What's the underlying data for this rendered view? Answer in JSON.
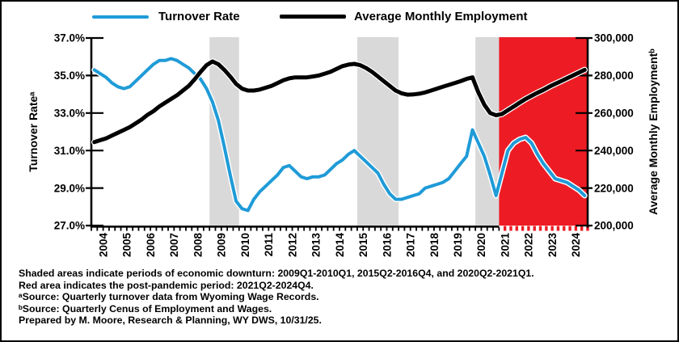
{
  "legend": {
    "items": [
      {
        "label": "Turnover Rate",
        "color": "#1F9BD7"
      },
      {
        "label": "Average Monthly Employment",
        "color": "#000000"
      }
    ]
  },
  "axes": {
    "left": {
      "title": "Turnover Rateᵃ",
      "tick_labels": [
        "37.0%",
        "35.0%",
        "33.0%",
        "31.0%",
        "29.0%",
        "27.0%"
      ]
    },
    "right": {
      "title": "Average Monthly Employmentᵇ",
      "tick_labels": [
        "300,000",
        "280,000",
        "260,000",
        "240,000",
        "220,000",
        "200,000"
      ]
    },
    "x": {
      "years": [
        "2004",
        "2005",
        "2006",
        "2007",
        "2008",
        "2009",
        "2010",
        "2011",
        "2012",
        "2013",
        "2014",
        "2015",
        "2016",
        "2017",
        "2018",
        "2019",
        "2020",
        "2021",
        "2022",
        "2023",
        "2024"
      ]
    }
  },
  "footnotes": [
    "Shaded areas indicate periods of economic downturn: 2009Q1-2010Q1, 2015Q2-2016Q4, and 2020Q2-2021Q1.",
    "Red area indicates the post-pandemic period: 2021Q2-2024Q4.",
    "ᵃSource: Quarterly turnover data from Wyoming Wage Records.",
    "ᵇSource: Quarterly Cenus of Employment and Wages.",
    "Prepared by M. Moore, Research & Planning, WY DWS, 10/31/25."
  ],
  "colors": {
    "turnover_line": "#1F9BD7",
    "employment_line": "#000000",
    "line_halo": "#FFFFFF",
    "downturn_band": "#D9D9D9",
    "post_pandemic_band": "#ED1C24",
    "axis": "#000000"
  },
  "chart_data": {
    "type": "line",
    "frequency": "quarterly",
    "start": "2004Q1",
    "end": "2024Q4",
    "left_axis": {
      "label": "Turnover Rateᵃ",
      "range": [
        27,
        37
      ],
      "tick_step": 2,
      "unit": "percent"
    },
    "right_axis": {
      "label": "Average Monthly Employmentᵇ",
      "range": [
        200000,
        300000
      ],
      "tick_step": 20000,
      "unit": "jobs"
    },
    "grid": false,
    "legend_position": "top",
    "series": [
      {
        "name": "Turnover Rate",
        "axis": "left",
        "color": "#1F9BD7",
        "unit": "%",
        "values": [
          35.3,
          35.1,
          34.9,
          34.6,
          34.4,
          34.3,
          34.4,
          34.7,
          35.0,
          35.3,
          35.6,
          35.8,
          35.8,
          35.9,
          35.8,
          35.6,
          35.4,
          35.1,
          34.8,
          34.3,
          33.6,
          32.6,
          31.2,
          29.7,
          28.3,
          27.9,
          27.8,
          28.4,
          28.8,
          29.1,
          29.4,
          29.7,
          30.1,
          30.2,
          29.9,
          29.6,
          29.5,
          29.6,
          29.6,
          29.7,
          30.0,
          30.3,
          30.5,
          30.8,
          31.0,
          30.7,
          30.4,
          30.1,
          29.8,
          29.2,
          28.7,
          28.4,
          28.4,
          28.5,
          28.6,
          28.7,
          29.0,
          29.1,
          29.2,
          29.3,
          29.5,
          29.9,
          30.3,
          30.7,
          32.1,
          31.4,
          30.7,
          29.7,
          28.6,
          29.8,
          31.0,
          31.4,
          31.6,
          31.7,
          31.4,
          30.8,
          30.3,
          29.9,
          29.5,
          29.4,
          29.3,
          29.1,
          28.9,
          28.6
        ]
      },
      {
        "name": "Average Monthly Employment",
        "axis": "right",
        "color": "#000000",
        "unit": "jobs",
        "values": [
          244500,
          245500,
          246500,
          248000,
          249500,
          251000,
          252500,
          254500,
          256500,
          259000,
          261000,
          263500,
          265500,
          267500,
          269500,
          272000,
          274500,
          278000,
          282000,
          285500,
          287500,
          286000,
          283000,
          279500,
          275500,
          273000,
          272000,
          272000,
          272500,
          273500,
          274500,
          276000,
          277500,
          278500,
          279000,
          279000,
          279000,
          279500,
          280000,
          281000,
          282000,
          283500,
          285000,
          285800,
          286200,
          285500,
          284000,
          282000,
          279500,
          277000,
          274500,
          272000,
          270500,
          269800,
          269900,
          270300,
          271000,
          272000,
          273000,
          274000,
          275000,
          276000,
          277000,
          278200,
          279000,
          271000,
          264500,
          260000,
          258800,
          259500,
          261500,
          263500,
          265500,
          267500,
          269200,
          270800,
          272300,
          274000,
          275500,
          277000,
          278500,
          280000,
          281500,
          283000
        ]
      }
    ],
    "shaded_periods": [
      {
        "kind": "economic-downturn",
        "label": "2009Q1-2010Q1",
        "start_index": 20,
        "end_index": 25,
        "color": "#D9D9D9"
      },
      {
        "kind": "economic-downturn",
        "label": "2015Q2-2016Q4",
        "start_index": 45,
        "end_index": 52,
        "color": "#D9D9D9"
      },
      {
        "kind": "economic-downturn",
        "label": "2020Q2-2021Q1",
        "start_index": 65,
        "end_index": 69,
        "color": "#D9D9D9"
      },
      {
        "kind": "post-pandemic",
        "label": "2021Q2-2024Q4",
        "start_index": 69,
        "end_index": 84,
        "color": "#ED1C24"
      }
    ]
  }
}
